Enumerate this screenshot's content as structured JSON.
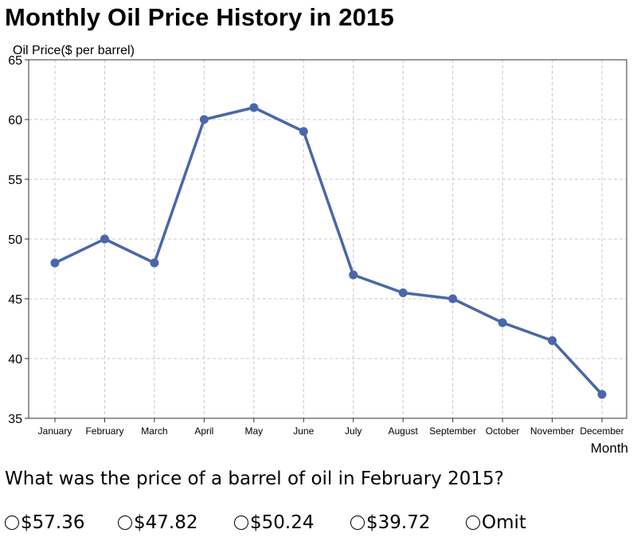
{
  "title": "Monthly Oil Price History in 2015",
  "question": "What was the price of a barrel of oil in February 2015?",
  "options": [
    "$57.36",
    "$47.82",
    "$50.24",
    "$39.72",
    "Omit"
  ],
  "chart_data": {
    "type": "line",
    "title": "Monthly Oil Price History in 2015",
    "xlabel": "Month",
    "ylabel": "Oil Price($ per barrel)",
    "categories": [
      "January",
      "February",
      "March",
      "April",
      "May",
      "June",
      "July",
      "August",
      "September",
      "October",
      "November",
      "December"
    ],
    "values": [
      48,
      50,
      48,
      60,
      61,
      59,
      47,
      45.5,
      45,
      43,
      41.5,
      37
    ],
    "ylim": [
      35,
      65
    ],
    "yticks": [
      35,
      40,
      45,
      50,
      55,
      60,
      65
    ],
    "grid": true,
    "line_color": "#4A67A8"
  }
}
